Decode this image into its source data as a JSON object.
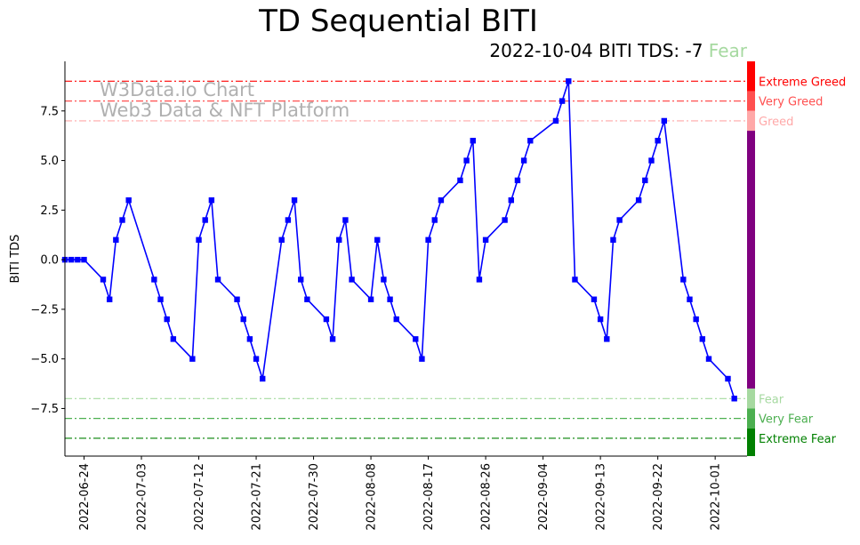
{
  "title": "TD Sequential BITI",
  "subtitle": {
    "prefix": "2022-10-04 BITI TDS: -7",
    "sentiment": "Fear",
    "sentiment_color": "#a6d9a0"
  },
  "watermark": {
    "line1": "W3Data.io Chart",
    "line2": "Web3 Data & NFT Platform"
  },
  "chart_data": {
    "type": "line",
    "ylabel": "BITI TDS",
    "xlabel": "",
    "ylim": [
      -9.9,
      10
    ],
    "xlim": [
      "2022-06-21",
      "2022-10-06"
    ],
    "x_tick_labels": [
      "2022-06-24",
      "2022-07-03",
      "2022-07-12",
      "2022-07-21",
      "2022-07-30",
      "2022-08-08",
      "2022-08-17",
      "2022-08-26",
      "2022-09-04",
      "2022-09-13",
      "2022-09-22",
      "2022-10-01"
    ],
    "y_ticks": [
      -7.5,
      -5.0,
      -2.5,
      0.0,
      2.5,
      5.0,
      7.5
    ],
    "y_tick_labels": [
      "−7.5",
      "−5.0",
      "−2.5",
      "0.0",
      "2.5",
      "5.0",
      "7.5"
    ],
    "line_color": "#0000ff",
    "grid": false,
    "series": [
      {
        "x": [
          "2022-06-21",
          "2022-06-22",
          "2022-06-23",
          "2022-06-24",
          "2022-06-27",
          "2022-06-28",
          "2022-06-29",
          "2022-06-30",
          "2022-07-01",
          "2022-07-05",
          "2022-07-06",
          "2022-07-07",
          "2022-07-08",
          "2022-07-11",
          "2022-07-12",
          "2022-07-13",
          "2022-07-14",
          "2022-07-15",
          "2022-07-18",
          "2022-07-19",
          "2022-07-20",
          "2022-07-21",
          "2022-07-22",
          "2022-07-25",
          "2022-07-26",
          "2022-07-27",
          "2022-07-28",
          "2022-07-29",
          "2022-08-01",
          "2022-08-02",
          "2022-08-03",
          "2022-08-04",
          "2022-08-05",
          "2022-08-08",
          "2022-08-09",
          "2022-08-10",
          "2022-08-11",
          "2022-08-12",
          "2022-08-15",
          "2022-08-16",
          "2022-08-17",
          "2022-08-18",
          "2022-08-19",
          "2022-08-22",
          "2022-08-23",
          "2022-08-24",
          "2022-08-25",
          "2022-08-26",
          "2022-08-29",
          "2022-08-30",
          "2022-08-31",
          "2022-09-01",
          "2022-09-02",
          "2022-09-06",
          "2022-09-07",
          "2022-09-08",
          "2022-09-09",
          "2022-09-12",
          "2022-09-13",
          "2022-09-14",
          "2022-09-15",
          "2022-09-16",
          "2022-09-19",
          "2022-09-20",
          "2022-09-21",
          "2022-09-22",
          "2022-09-23",
          "2022-09-26",
          "2022-09-27",
          "2022-09-28",
          "2022-09-29",
          "2022-09-30",
          "2022-10-03",
          "2022-10-04"
        ],
        "y": [
          0,
          0,
          0,
          0,
          -1,
          -2,
          1,
          2,
          3,
          -1,
          -2,
          -3,
          -4,
          -5,
          1,
          2,
          3,
          -1,
          -2,
          -3,
          -4,
          -5,
          -6,
          1,
          2,
          3,
          -1,
          -2,
          -3,
          -4,
          1,
          2,
          -1,
          -2,
          1,
          -1,
          -2,
          -3,
          -4,
          -5,
          1,
          2,
          3,
          4,
          5,
          6,
          -1,
          1,
          2,
          3,
          4,
          5,
          6,
          7,
          8,
          9,
          -1,
          -2,
          -3,
          -4,
          1,
          2,
          3,
          4,
          5,
          6,
          7,
          -1,
          -2,
          -3,
          -4,
          -5,
          -6,
          -7
        ]
      }
    ],
    "reference_lines": [
      {
        "y": 9,
        "label": "Extreme Greed",
        "color": "#ff0000"
      },
      {
        "y": 8,
        "label": "Very Greed",
        "color": "#ff5050"
      },
      {
        "y": 7,
        "label": "Greed",
        "color": "#ffa8a8"
      },
      {
        "y": -7,
        "label": "Fear",
        "color": "#a6d9a0"
      },
      {
        "y": -8,
        "label": "Very Fear",
        "color": "#4caf50"
      },
      {
        "y": -9,
        "label": "Extreme Fear",
        "color": "#008000"
      }
    ],
    "neutral_band_color": "#800080"
  }
}
